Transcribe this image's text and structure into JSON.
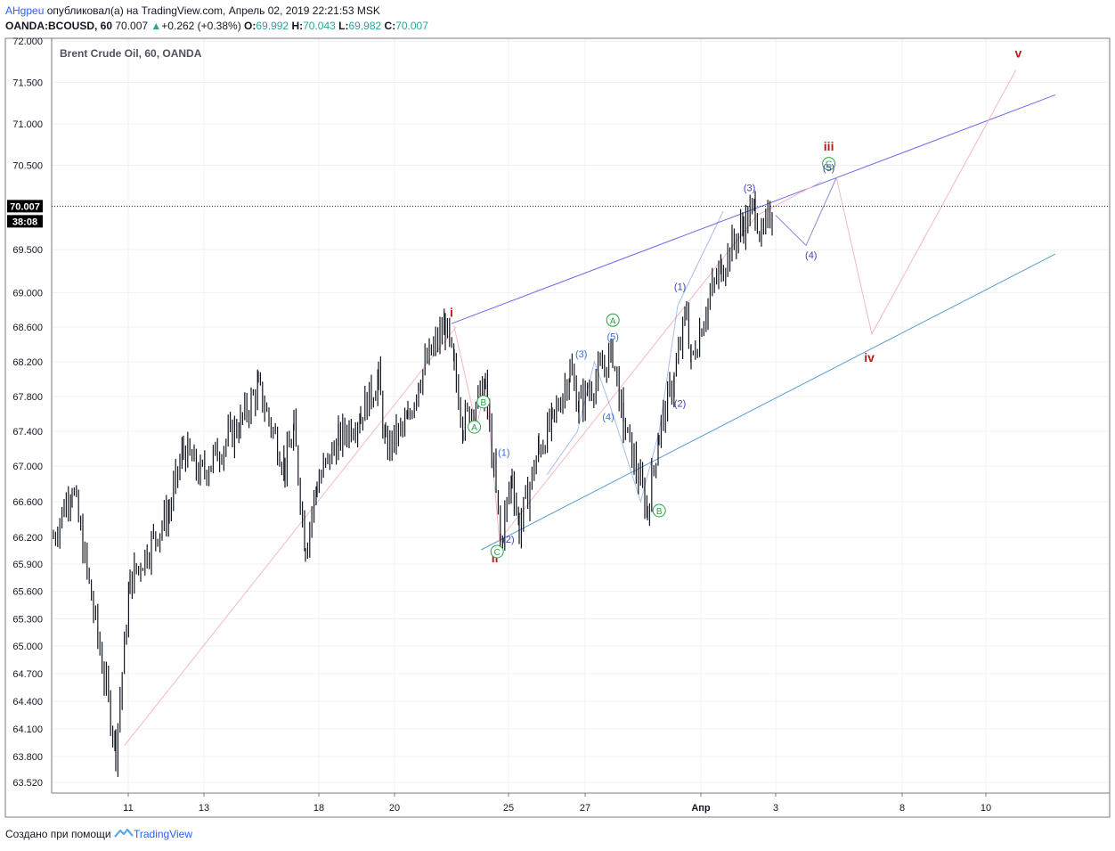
{
  "header": {
    "author": "AHgpeu",
    "published_text": "опубликовал(а) на TradingView.com, Апрель 02, 2019 22:21:53 MSK",
    "symbol": "OANDA:BCOUSD, 60",
    "last": "70.007",
    "change": "+0.262 (+0.38%)",
    "o_label": "O:",
    "o_value": "69.992",
    "h_label": "H:",
    "h_value": "70.043",
    "l_label": "L:",
    "l_value": "69.982",
    "c_label": "C:",
    "c_value": "70.007"
  },
  "footer": {
    "created_with": "Создано при помощи",
    "brand": "TradingView"
  },
  "colors": {
    "up": "#26a69a",
    "candle": "#131722",
    "upper_channel": "#6a6ae8",
    "lower_channel": "#5b9bd5",
    "pink_path": "#f5b8c4",
    "red_label": "#b71c1c",
    "green_label": "#2ea043",
    "blue_label": "#3b6fd8",
    "navy_label": "#3f3fb0"
  },
  "chart_data": {
    "type": "candlestick",
    "title": "Brent Crude Oil, 60, OANDA",
    "y_ticks": [
      "72.000",
      "71.500",
      "71.000",
      "70.500",
      "70.000",
      "69.500",
      "69.000",
      "68.600",
      "68.200",
      "67.800",
      "67.400",
      "67.000",
      "66.600",
      "66.200",
      "65.900",
      "65.600",
      "65.300",
      "65.000",
      "64.700",
      "64.400",
      "64.100",
      "63.800",
      "63.520"
    ],
    "x_ticks": [
      "11",
      "13",
      "18",
      "20",
      "25",
      "27",
      "Апр",
      "3",
      "8",
      "10"
    ],
    "ylim": [
      63.4,
      72.1
    ],
    "price_line": {
      "value": 70.007,
      "label": "70.007",
      "countdown": "38:08"
    },
    "price_series_keypoints": [
      {
        "t": "Mar 10",
        "price": 66.2
      },
      {
        "t": "Mar 10",
        "price": 66.8
      },
      {
        "t": "Mar 11",
        "price": 63.9
      },
      {
        "t": "Mar 11",
        "price": 65.7
      },
      {
        "t": "Mar 12",
        "price": 66.5
      },
      {
        "t": "Mar 13",
        "price": 67.2
      },
      {
        "t": "Mar 13",
        "price": 66.9
      },
      {
        "t": "Mar 14",
        "price": 67.5
      },
      {
        "t": "Mar 15",
        "price": 67.9
      },
      {
        "t": "Mar 16",
        "price": 67.0
      },
      {
        "t": "Mar 17",
        "price": 67.4
      },
      {
        "t": "Mar 18",
        "price": 66.1
      },
      {
        "t": "Mar 18",
        "price": 66.8
      },
      {
        "t": "Mar 19",
        "price": 67.3
      },
      {
        "t": "Mar 19",
        "price": 67.6
      },
      {
        "t": "Mar 20",
        "price": 68.0
      },
      {
        "t": "Mar 20",
        "price": 67.2
      },
      {
        "t": "Mar 21",
        "price": 67.5
      },
      {
        "t": "Mar 21",
        "price": 68.0
      },
      {
        "t": "Mar 22",
        "price": 68.62
      },
      {
        "t": "Mar 22",
        "price": 68.1
      },
      {
        "t": "Mar 23",
        "price": 67.5
      },
      {
        "t": "Mar 24",
        "price": 67.9
      },
      {
        "t": "Mar 24",
        "price": 66.15
      },
      {
        "t": "Mar 24",
        "price": 66.9
      },
      {
        "t": "Mar 25",
        "price": 66.3
      },
      {
        "t": "Mar 25",
        "price": 67.2
      },
      {
        "t": "Mar 26",
        "price": 67.5
      },
      {
        "t": "Mar 26",
        "price": 68.1
      },
      {
        "t": "Mar 27",
        "price": 67.7
      },
      {
        "t": "Mar 27",
        "price": 68.3
      },
      {
        "t": "Mar 28",
        "price": 67.5
      },
      {
        "t": "Mar 28",
        "price": 66.5
      },
      {
        "t": "Mar 29",
        "price": 67.4
      },
      {
        "t": "Mar 29",
        "price": 68.0
      },
      {
        "t": "Mar 30",
        "price": 68.8
      },
      {
        "t": "Mar 31",
        "price": 68.2
      },
      {
        "t": "Apr 1",
        "price": 68.9
      },
      {
        "t": "Apr 1",
        "price": 69.3
      },
      {
        "t": "Apr 2",
        "price": 69.8
      },
      {
        "t": "Apr 2",
        "price": 70.0
      },
      {
        "t": "Apr 2",
        "price": 69.6
      },
      {
        "t": "Apr 3",
        "price": 70.0
      }
    ],
    "projection_path": [
      {
        "t": "Apr 3",
        "price": 70.0
      },
      {
        "t": "Apr 4",
        "price": 69.55
      },
      {
        "t": "Apr 5",
        "price": 70.35
      },
      {
        "t": "Apr 7",
        "price": 68.5
      },
      {
        "t": "Apr 12",
        "price": 71.65
      }
    ],
    "wave_labels": {
      "red": [
        "i",
        "ii",
        "iii",
        "iv",
        "v"
      ],
      "green": [
        "A",
        "B",
        "C",
        "A",
        "B",
        "C"
      ],
      "blue": [
        "(1)",
        "(2)",
        "(3)",
        "(4)",
        "(5)",
        "(1)",
        "(2)",
        "(3)",
        "(4)",
        "(5)"
      ]
    }
  }
}
